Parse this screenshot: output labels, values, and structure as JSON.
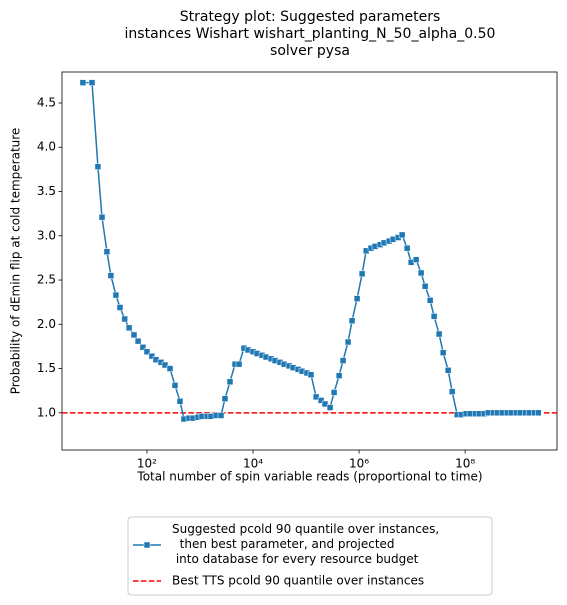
{
  "chart_data": {
    "type": "line",
    "title": "Strategy plot: Suggested parameters\ninstances Wishart wishart_planting_N_50_alpha_0.50\nsolver pysa",
    "xlabel": "Total number of spin variable reads (proportional to time)",
    "ylabel": "Probability of dEmin flip at cold temperature",
    "xscale": "log",
    "xlim": [
      2.5,
      5400000000
    ],
    "ylim": [
      0.58,
      4.85
    ],
    "xticks": [
      {
        "value": 100,
        "label": "10²"
      },
      {
        "value": 10000,
        "label": "10⁴"
      },
      {
        "value": 1000000,
        "label": "10⁶"
      },
      {
        "value": 100000000,
        "label": "10⁸"
      }
    ],
    "yticks": [
      {
        "value": 1,
        "label": "1.0"
      },
      {
        "value": 1.5,
        "label": "1.5"
      },
      {
        "value": 2,
        "label": "2.0"
      },
      {
        "value": 2.5,
        "label": "2.5"
      },
      {
        "value": 3,
        "label": "3.0"
      },
      {
        "value": 3.5,
        "label": "3.5"
      },
      {
        "value": 4,
        "label": "4.0"
      },
      {
        "value": 4.5,
        "label": "4.5"
      }
    ],
    "legend": "lower center",
    "series": [
      {
        "name": "Suggested pcold 90 quantile over instances,\n  then best parameter, and projected\n into database for every resource budget",
        "color": "#1f77b4",
        "marker": "square",
        "x": [
          6.2,
          9.2,
          11.9,
          14.2,
          17.6,
          20.9,
          26,
          31,
          38,
          46,
          57,
          68,
          84,
          100,
          124,
          148,
          184,
          219,
          272,
          338,
          420,
          499,
          620,
          738,
          917,
          1090,
          1360,
          1610,
          2010,
          2490,
          2960,
          3680,
          4580,
          5450,
          6760,
          8050,
          10000,
          11900,
          14800,
          17600,
          21900,
          26000,
          32300,
          38500,
          47800,
          56900,
          70700,
          84100,
          104000,
          124000,
          155000,
          192000,
          228000,
          284000,
          338000,
          420000,
          499000,
          620000,
          738000,
          917000,
          1140000,
          1360000,
          1680000,
          2000000,
          2490000,
          2960000,
          3680000,
          4380000,
          5450000,
          6480000,
          8050000,
          9580000,
          11900000,
          14800000,
          17600000,
          21900000,
          26000000,
          32300000,
          38500000,
          47800000,
          56900000,
          70700000,
          84100000,
          104000000,
          124000000,
          155000000,
          184000000,
          228000000,
          272000000,
          338000000,
          402000000,
          499000000,
          620000000,
          738000000,
          917000000,
          1090000000,
          1360000000,
          1610000000,
          2010000000,
          2390000000
        ],
        "values": [
          4.73,
          4.73,
          3.78,
          3.21,
          2.82,
          2.55,
          2.33,
          2.19,
          2.06,
          1.96,
          1.88,
          1.81,
          1.74,
          1.69,
          1.64,
          1.6,
          1.57,
          1.54,
          1.5,
          1.31,
          1.13,
          0.93,
          0.94,
          0.94,
          0.95,
          0.96,
          0.96,
          0.96,
          0.97,
          0.97,
          1.16,
          1.35,
          1.55,
          1.55,
          1.73,
          1.71,
          1.69,
          1.67,
          1.65,
          1.63,
          1.61,
          1.59,
          1.57,
          1.55,
          1.53,
          1.51,
          1.49,
          1.47,
          1.45,
          1.43,
          1.18,
          1.14,
          1.1,
          1.06,
          1.23,
          1.42,
          1.59,
          1.8,
          2.04,
          2.29,
          2.57,
          2.83,
          2.86,
          2.88,
          2.9,
          2.92,
          2.94,
          2.96,
          2.98,
          3.01,
          2.86,
          2.7,
          2.73,
          2.58,
          2.43,
          2.27,
          2.09,
          1.89,
          1.68,
          1.48,
          1.24,
          0.98,
          0.98,
          0.99,
          0.99,
          0.99,
          0.99,
          0.99,
          1.0,
          1.0,
          1.0,
          1.0,
          1.0,
          1.0,
          1.0,
          1.0,
          1.0,
          1.0,
          1.0,
          1.0
        ]
      }
    ],
    "reference_lines": [
      {
        "name": "Best TTS pcold 90 quantile over instances",
        "value": 1.0,
        "color": "#ff0000",
        "style": "dashed"
      }
    ]
  }
}
